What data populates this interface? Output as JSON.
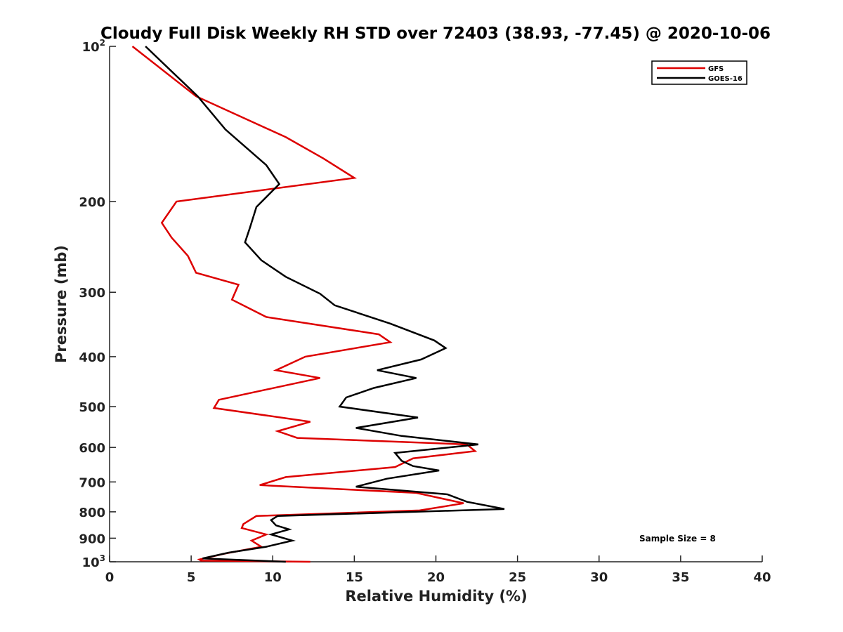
{
  "chart_data": {
    "type": "line",
    "title": "Cloudy Full Disk Weekly RH STD over 72403 (38.93, -77.45) @ 2020-10-06",
    "xlabel": "Relative Humidity (%)",
    "ylabel": "Pressure (mb)",
    "xlim": [
      0,
      40
    ],
    "ylim": [
      100,
      1000
    ],
    "y_scale": "log",
    "y_reversed": true,
    "grid": false,
    "legend_position": "top-right",
    "x_ticks": [
      {
        "value": 0,
        "label": "0"
      },
      {
        "value": 5,
        "label": "5"
      },
      {
        "value": 10,
        "label": "10"
      },
      {
        "value": 15,
        "label": "15"
      },
      {
        "value": 20,
        "label": "20"
      },
      {
        "value": 25,
        "label": "25"
      },
      {
        "value": 30,
        "label": "30"
      },
      {
        "value": 35,
        "label": "35"
      },
      {
        "value": 40,
        "label": "40"
      }
    ],
    "y_ticks": [
      {
        "value": 100,
        "base": "10",
        "exp": "2"
      },
      {
        "value": 200,
        "label": "200"
      },
      {
        "value": 300,
        "label": "300"
      },
      {
        "value": 400,
        "label": "400"
      },
      {
        "value": 500,
        "label": "500"
      },
      {
        "value": 600,
        "label": "600"
      },
      {
        "value": 700,
        "label": "700"
      },
      {
        "value": 800,
        "label": "800"
      },
      {
        "value": 900,
        "label": "900"
      },
      {
        "value": 1000,
        "base": "10",
        "exp": "3"
      }
    ],
    "series": [
      {
        "name": "GFS",
        "color": "#dd0000",
        "points": [
          [
            1.4,
            100
          ],
          [
            5.3,
            125
          ],
          [
            10.8,
            150
          ],
          [
            13.1,
            165
          ],
          [
            15.0,
            180
          ],
          [
            4.1,
            200
          ],
          [
            3.2,
            220
          ],
          [
            3.8,
            235
          ],
          [
            4.8,
            255
          ],
          [
            5.3,
            275
          ],
          [
            7.9,
            290
          ],
          [
            7.5,
            310
          ],
          [
            9.6,
            335
          ],
          [
            16.5,
            362
          ],
          [
            17.2,
            375
          ],
          [
            12.0,
            400
          ],
          [
            10.2,
            425
          ],
          [
            12.9,
            440
          ],
          [
            6.7,
            485
          ],
          [
            6.4,
            503
          ],
          [
            12.3,
            535
          ],
          [
            10.3,
            558
          ],
          [
            11.5,
            575
          ],
          [
            21.9,
            592
          ],
          [
            22.4,
            610
          ],
          [
            18.6,
            630
          ],
          [
            17.5,
            655
          ],
          [
            10.8,
            685
          ],
          [
            9.2,
            710
          ],
          [
            18.8,
            735
          ],
          [
            21.7,
            770
          ],
          [
            19.0,
            795
          ],
          [
            9.0,
            815
          ],
          [
            8.2,
            845
          ],
          [
            8.1,
            860
          ],
          [
            9.6,
            885
          ],
          [
            8.7,
            910
          ],
          [
            9.3,
            935
          ],
          [
            7.0,
            965
          ],
          [
            5.5,
            990
          ],
          [
            5.6,
            995
          ],
          [
            12.3,
            1000
          ]
        ]
      },
      {
        "name": "GOES-16",
        "color": "#000000",
        "points": [
          [
            2.2,
            100
          ],
          [
            5.4,
            125
          ],
          [
            7.1,
            145
          ],
          [
            9.6,
            170
          ],
          [
            10.4,
            185
          ],
          [
            9.0,
            205
          ],
          [
            8.6,
            225
          ],
          [
            8.3,
            240
          ],
          [
            9.3,
            260
          ],
          [
            10.8,
            280
          ],
          [
            12.9,
            302
          ],
          [
            13.8,
            318
          ],
          [
            17.2,
            345
          ],
          [
            19.9,
            372
          ],
          [
            20.6,
            385
          ],
          [
            19.1,
            405
          ],
          [
            16.4,
            425
          ],
          [
            18.8,
            440
          ],
          [
            16.2,
            460
          ],
          [
            14.5,
            480
          ],
          [
            14.1,
            500
          ],
          [
            18.9,
            525
          ],
          [
            15.1,
            550
          ],
          [
            17.9,
            570
          ],
          [
            22.6,
            592
          ],
          [
            17.5,
            615
          ],
          [
            17.9,
            637
          ],
          [
            18.6,
            652
          ],
          [
            20.2,
            665
          ],
          [
            17.0,
            690
          ],
          [
            15.1,
            715
          ],
          [
            20.7,
            740
          ],
          [
            21.9,
            765
          ],
          [
            24.2,
            790
          ],
          [
            10.3,
            815
          ],
          [
            9.9,
            830
          ],
          [
            10.2,
            850
          ],
          [
            11.0,
            865
          ],
          [
            9.9,
            885
          ],
          [
            11.2,
            910
          ],
          [
            9.6,
            935
          ],
          [
            7.3,
            960
          ],
          [
            5.7,
            985
          ],
          [
            10.8,
            1000
          ]
        ]
      }
    ],
    "annotations": [
      {
        "text": "Sample Size = 8"
      }
    ]
  }
}
